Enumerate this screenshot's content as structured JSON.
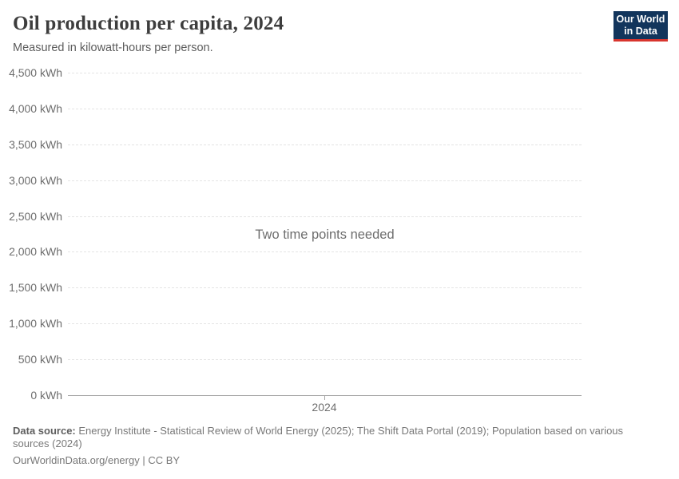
{
  "header": {
    "title": "Oil production per capita, 2024",
    "subtitle": "Measured in kilowatt-hours per person.",
    "logo": {
      "line1": "Our World",
      "line2": "in Data"
    }
  },
  "chart_data": {
    "type": "line",
    "title": "Oil production per capita, 2024",
    "ylabel": "kilowatt-hours per person",
    "ylim": [
      0,
      4500
    ],
    "ytick_step": 500,
    "yticks": [
      {
        "value": 4500,
        "label": "4,500 kWh"
      },
      {
        "value": 4000,
        "label": "4,000 kWh"
      },
      {
        "value": 3500,
        "label": "3,500 kWh"
      },
      {
        "value": 3000,
        "label": "3,000 kWh"
      },
      {
        "value": 2500,
        "label": "2,500 kWh"
      },
      {
        "value": 2000,
        "label": "2,000 kWh"
      },
      {
        "value": 1500,
        "label": "1,500 kWh"
      },
      {
        "value": 1000,
        "label": "1,000 kWh"
      },
      {
        "value": 500,
        "label": "500 kWh"
      },
      {
        "value": 0,
        "label": "0 kWh"
      }
    ],
    "xticks": [
      "2024"
    ],
    "series": [],
    "message": "Two time points needed",
    "grid": "horizontal-dashed",
    "legend": "none"
  },
  "footer": {
    "source_label": "Data source:",
    "source_text": "Energy Institute - Statistical Review of World Energy (2025); The Shift Data Portal (2019); Population based on various sources (2024)",
    "license_line": "OurWorldinData.org/energy | CC BY"
  },
  "colors": {
    "title": "#3d3d3d",
    "subtitle": "#5c5c5c",
    "axis_label": "#6e6e6e",
    "grid": "#e4e4e4",
    "zero_line": "#a5a5a5",
    "message": "#6d6d6d",
    "footer": "#787878",
    "logo_bg": "#12355c",
    "logo_bar": "#d8352e"
  }
}
